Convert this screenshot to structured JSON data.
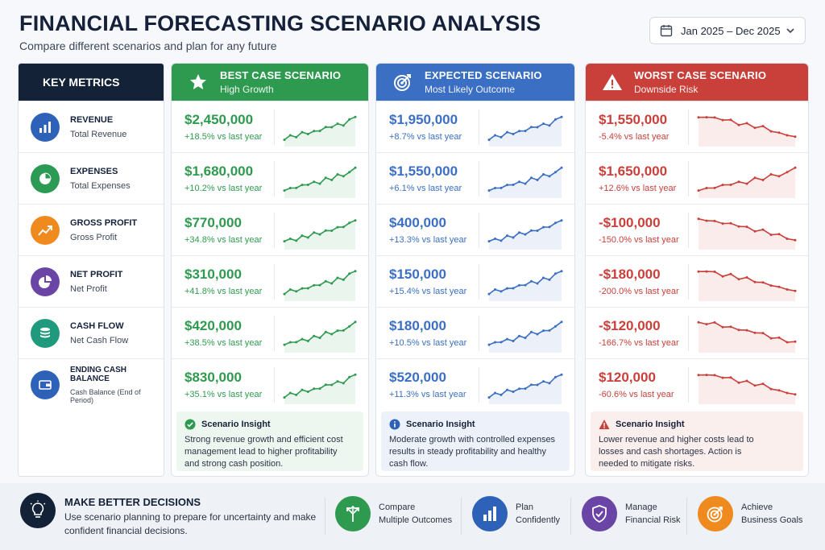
{
  "header": {
    "title": "FINANCIAL FORECASTING SCENARIO ANALYSIS",
    "subtitle": "Compare different scenarios and plan for any future",
    "date_range": "Jan 2025 – Dec 2025"
  },
  "metrics": {
    "heading": "KEY METRICS",
    "items": [
      {
        "name": "REVENUE",
        "sub": "Total Revenue",
        "icon": "bar-chart-icon",
        "color": "#2d62b8"
      },
      {
        "name": "EXPENSES",
        "sub": "Total Expenses",
        "icon": "pie-chart-icon",
        "color": "#2a9a55"
      },
      {
        "name": "GROSS PROFIT",
        "sub": "Gross Profit",
        "icon": "trend-up-icon",
        "color": "#ef8a1f"
      },
      {
        "name": "NET PROFIT",
        "sub": "Net Profit",
        "icon": "pie-chart-icon",
        "color": "#6b45a6"
      },
      {
        "name": "CASH FLOW",
        "sub": "Net Cash Flow",
        "icon": "coins-icon",
        "color": "#1f9a7d"
      },
      {
        "name": "ENDING CASH BALANCE",
        "sub": "Cash Balance (End of Period)",
        "icon": "wallet-icon",
        "color": "#2d62b8"
      }
    ]
  },
  "scenarios": [
    {
      "title": "BEST CASE SCENARIO",
      "subtitle": "High Growth",
      "icon": "star-icon",
      "color": "#2e9a4f",
      "trend": "up",
      "rows": [
        {
          "value": "$2,450,000",
          "change": "+18.5% vs last year"
        },
        {
          "value": "$1,680,000",
          "change": "+10.2% vs last year"
        },
        {
          "value": "$770,000",
          "change": "+34.8% vs last year"
        },
        {
          "value": "$310,000",
          "change": "+41.8% vs last year"
        },
        {
          "value": "$420,000",
          "change": "+38.5% vs last year"
        },
        {
          "value": "$830,000",
          "change": "+35.1% vs last year"
        }
      ],
      "insight": {
        "title": "Scenario Insight",
        "text": "Strong revenue growth and efficient cost management lead to higher profitability and strong cash position.",
        "icon": "check-circle-icon",
        "bg": "#eef7ef"
      }
    },
    {
      "title": "EXPECTED SCENARIO",
      "subtitle": "Most Likely Outcome",
      "icon": "target-icon",
      "color": "#3a6fc4",
      "trend": "up",
      "rows": [
        {
          "value": "$1,950,000",
          "change": "+8.7% vs last year"
        },
        {
          "value": "$1,550,000",
          "change": "+6.1% vs last year"
        },
        {
          "value": "$400,000",
          "change": "+13.3% vs last year"
        },
        {
          "value": "$150,000",
          "change": "+15.4% vs last year"
        },
        {
          "value": "$180,000",
          "change": "+10.5% vs last year"
        },
        {
          "value": "$520,000",
          "change": "+11.3% vs last year"
        }
      ],
      "insight": {
        "title": "Scenario Insight",
        "text": "Moderate growth with controlled expenses results in steady profitability and healthy cash flow.",
        "icon": "info-circle-icon",
        "bg": "#edf2fa"
      }
    },
    {
      "title": "WORST CASE SCENARIO",
      "subtitle": "Downside Risk",
      "icon": "warning-icon",
      "color": "#c9403b",
      "trend": "down",
      "rows": [
        {
          "value": "$1,550,000",
          "change": "-5.4% vs last year",
          "trend": "down"
        },
        {
          "value": "$1,650,000",
          "change": "+12.6% vs last year",
          "trend": "up"
        },
        {
          "value": "-$100,000",
          "change": "-150.0% vs last year",
          "trend": "down"
        },
        {
          "value": "-$180,000",
          "change": "-200.0% vs last year",
          "trend": "down"
        },
        {
          "value": "-$120,000",
          "change": "-166.7% vs last year",
          "trend": "down"
        },
        {
          "value": "$120,000",
          "change": "-60.6% vs last year",
          "trend": "down"
        }
      ],
      "insight": {
        "title": "Scenario Insight",
        "text": "Lower revenue and higher costs lead to losses and cash shortages. Action is needed to mitigate risks.",
        "icon": "warning-icon",
        "bg": "#fbefee"
      }
    }
  ],
  "footer": {
    "title": "MAKE BETTER DECISIONS",
    "text": "Use scenario planning to prepare for uncertainty and make confident financial decisions.",
    "icon": "lightbulb-icon",
    "features": [
      {
        "line1": "Compare",
        "line2": "Multiple Outcomes",
        "icon": "branch-arrows-icon",
        "color": "#2e9a4f"
      },
      {
        "line1": "Plan",
        "line2": "Confidently",
        "icon": "bar-chart-icon",
        "color": "#2d62b8"
      },
      {
        "line1": "Manage",
        "line2": "Financial Risk",
        "icon": "shield-check-icon",
        "color": "#6b45a6"
      },
      {
        "line1": "Achieve",
        "line2": "Business Goals",
        "icon": "target-icon",
        "color": "#ef8a1f"
      }
    ]
  }
}
